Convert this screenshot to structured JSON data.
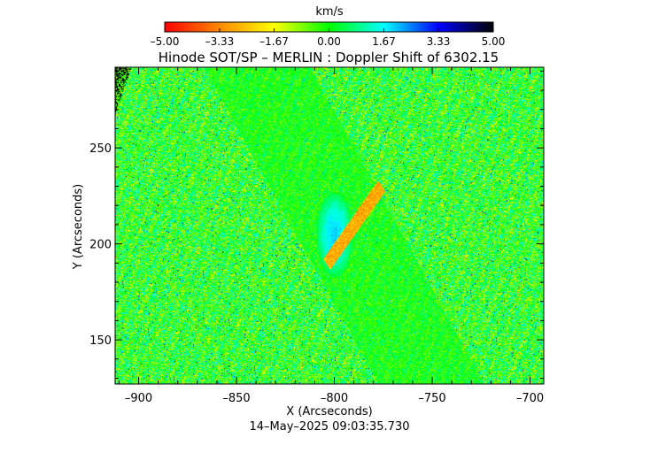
{
  "chart_data": {
    "type": "heatmap",
    "title": "Hinode SOT/SP – MERLIN : Doppler Shift of 6302.15",
    "xlabel": "X (Arcseconds)",
    "ylabel": "Y (Arcseconds)",
    "timestamp": "14–May–2025 09:03:35.730",
    "xlim": [
      -912,
      -693
    ],
    "ylim": [
      127,
      292
    ],
    "x_ticks": [
      {
        "value": -900,
        "label": "–900"
      },
      {
        "value": -850,
        "label": "–850"
      },
      {
        "value": -800,
        "label": "–800"
      },
      {
        "value": -750,
        "label": "–750"
      },
      {
        "value": -700,
        "label": "–700"
      }
    ],
    "y_ticks": [
      {
        "value": 150,
        "label": "150"
      },
      {
        "value": 200,
        "label": "200"
      },
      {
        "value": 250,
        "label": "250"
      }
    ],
    "colorbar": {
      "unit": "km/s",
      "range": [
        -5.0,
        5.0
      ],
      "ticks": [
        {
          "value": -5.0,
          "label": "–5.00"
        },
        {
          "value": -3.33,
          "label": "–3.33"
        },
        {
          "value": -1.67,
          "label": "–1.67"
        },
        {
          "value": 0.0,
          "label": "0.00"
        },
        {
          "value": 1.67,
          "label": "1.67"
        },
        {
          "value": 3.33,
          "label": "3.33"
        },
        {
          "value": 5.0,
          "label": "5.00"
        }
      ],
      "colors": [
        "#ff0000",
        "#ff8800",
        "#ffff00",
        "#00ff00",
        "#00ffff",
        "#0000ff",
        "#000000"
      ]
    },
    "grid": false,
    "features": [
      {
        "name": "blueshift-patch",
        "x": -800,
        "y": 205,
        "value": 1.6
      },
      {
        "name": "redshift-ridge",
        "x": -790,
        "y": 210,
        "value": -2.8
      }
    ]
  }
}
